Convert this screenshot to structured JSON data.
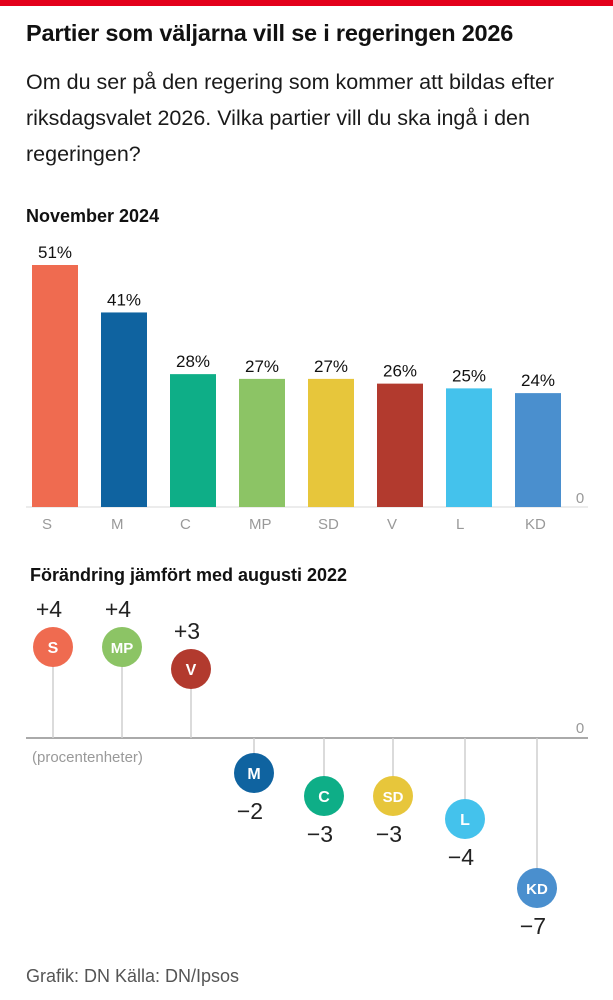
{
  "title": "Partier som väljarna vill se i regeringen 2026",
  "subtitle": "Om du ser på den regering som kommer att bildas efter riksdagsvalet 2026. Vilka partier vill du ska ingå i den regeringen?",
  "section1_title": "November 2024",
  "section2_title": "Förändring jämfört med augusti 2022",
  "footer": "Grafik: DN Källa: DN/Ipsos",
  "colors": {
    "accent": "#e3001b",
    "S": "#ef6b50",
    "M": "#0f63a0",
    "C": "#0eae87",
    "MP": "#8cc465",
    "SD": "#e7c63b",
    "V": "#b23a2e",
    "L": "#44c2ec",
    "KD": "#4a8fce"
  },
  "chart_data": [
    {
      "type": "bar",
      "title": "November 2024",
      "categories": [
        "S",
        "M",
        "C",
        "MP",
        "SD",
        "V",
        "L",
        "KD"
      ],
      "values": [
        51,
        41,
        28,
        27,
        27,
        26,
        25,
        24
      ],
      "value_labels": [
        "51%",
        "41%",
        "28%",
        "27%",
        "27%",
        "26%",
        "25%",
        "24%"
      ],
      "zero_label": "0",
      "ylim": [
        0,
        51
      ]
    },
    {
      "type": "scatter",
      "title": "Förändring jämfört med augusti 2022",
      "unit_note": "(procentenheter)",
      "zero_label": "0",
      "categories": [
        "S",
        "MP",
        "V",
        "M",
        "C",
        "SD",
        "L",
        "KD"
      ],
      "values": [
        4,
        4,
        3,
        -2,
        -3,
        -3,
        -4,
        -7
      ],
      "value_labels": [
        "+4",
        "+4",
        "+3",
        "−2",
        "−3",
        "−3",
        "−4",
        "−7"
      ]
    }
  ]
}
